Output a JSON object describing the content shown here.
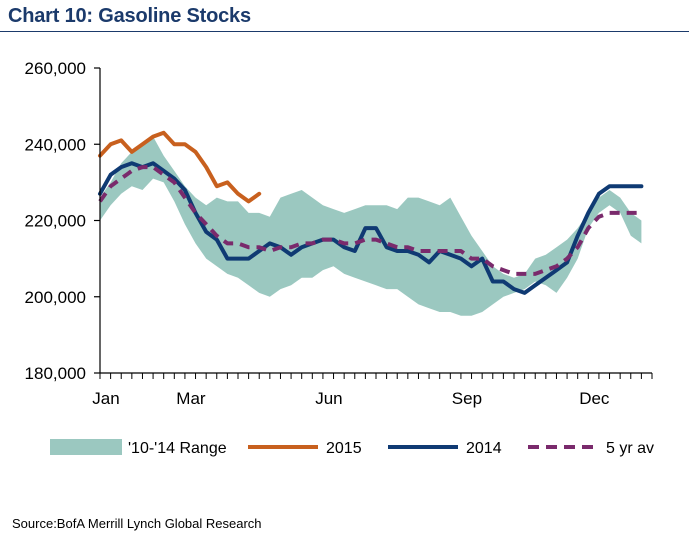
{
  "title": "Chart 10: Gasoline Stocks",
  "source": "Source:BofA Merrill Lynch Global Research",
  "colors": {
    "range": "#9bc8c0",
    "s2015": "#c8601e",
    "s2014": "#0f3a73",
    "avg": "#7a2a6c",
    "title": "#1b3a6b"
  },
  "chart_data": {
    "type": "line",
    "title": "Chart 10: Gasoline Stocks",
    "xlabel": "",
    "ylabel": "",
    "ylim": [
      180000,
      260000
    ],
    "yticks": [
      "260,000",
      "240,000",
      "220,000",
      "200,000",
      "180,000"
    ],
    "ytick_values": [
      260000,
      240000,
      220000,
      200000,
      180000
    ],
    "xticks": [
      "Jan",
      "Mar",
      "Jun",
      "Sep",
      "Dec"
    ],
    "xtick_weeks": [
      1,
      9,
      22,
      35,
      47
    ],
    "x_unit": "week of year",
    "xlim": [
      1,
      53
    ],
    "grid": false,
    "legend_position": "bottom",
    "legend": [
      "'10-'14 Range",
      "2015",
      "2014",
      "5 yr av"
    ],
    "series": [
      {
        "name": "'10-'14 Range",
        "kind": "band",
        "x": [
          1,
          2,
          3,
          4,
          5,
          6,
          7,
          8,
          9,
          10,
          11,
          12,
          13,
          14,
          15,
          16,
          17,
          18,
          19,
          20,
          21,
          22,
          23,
          24,
          25,
          26,
          27,
          28,
          29,
          30,
          31,
          32,
          33,
          34,
          35,
          36,
          37,
          38,
          39,
          40,
          41,
          42,
          43,
          44,
          45,
          46,
          47,
          48,
          49,
          50,
          51,
          52
        ],
        "low": [
          220000,
          224000,
          227000,
          229000,
          228000,
          231000,
          230000,
          225000,
          219000,
          214000,
          210000,
          208000,
          206000,
          205000,
          203000,
          201000,
          200000,
          202000,
          203000,
          205000,
          205000,
          207000,
          208000,
          206000,
          205000,
          204000,
          203000,
          202000,
          202000,
          200000,
          198000,
          197000,
          196000,
          196000,
          195000,
          195000,
          196000,
          198000,
          200000,
          201000,
          202000,
          204000,
          203000,
          201000,
          205000,
          210000,
          218000,
          222000,
          224000,
          222000,
          216000,
          214000
        ],
        "high": [
          226000,
          230000,
          235000,
          238000,
          240000,
          242000,
          237000,
          233000,
          229000,
          226000,
          224000,
          226000,
          225000,
          225000,
          222000,
          222000,
          221000,
          226000,
          227000,
          228000,
          226000,
          224000,
          223000,
          222000,
          223000,
          224000,
          224000,
          224000,
          223000,
          226000,
          226000,
          225000,
          224000,
          226000,
          221000,
          216000,
          212000,
          208000,
          206000,
          205000,
          206000,
          210000,
          211000,
          213000,
          215000,
          218000,
          222000,
          226000,
          228000,
          226000,
          222000,
          220000
        ]
      },
      {
        "name": "2015",
        "kind": "line",
        "x": [
          1,
          2,
          3,
          4,
          5,
          6,
          7,
          8,
          9,
          10,
          11,
          12,
          13,
          14,
          15,
          16
        ],
        "values": [
          237000,
          240000,
          241000,
          238000,
          240000,
          242000,
          243000,
          240000,
          240000,
          238000,
          234000,
          229000,
          230000,
          227000,
          225000,
          227000
        ]
      },
      {
        "name": "2014",
        "kind": "line",
        "x": [
          1,
          2,
          3,
          4,
          5,
          6,
          7,
          8,
          9,
          10,
          11,
          12,
          13,
          14,
          15,
          16,
          17,
          18,
          19,
          20,
          21,
          22,
          23,
          24,
          25,
          26,
          27,
          28,
          29,
          30,
          31,
          32,
          33,
          34,
          35,
          36,
          37,
          38,
          39,
          40,
          41,
          42,
          43,
          44,
          45,
          46,
          47,
          48,
          49,
          50,
          51,
          52
        ],
        "values": [
          227000,
          232000,
          234000,
          235000,
          234000,
          235000,
          233000,
          231000,
          228000,
          222000,
          217000,
          215000,
          210000,
          210000,
          210000,
          212000,
          214000,
          213000,
          211000,
          213000,
          214000,
          215000,
          215000,
          213000,
          212000,
          218000,
          218000,
          213000,
          212000,
          212000,
          211000,
          209000,
          212000,
          211000,
          210000,
          208000,
          210000,
          204000,
          204000,
          202000,
          201000,
          203000,
          205000,
          207000,
          209000,
          216000,
          222000,
          227000,
          229000,
          229000,
          229000,
          229000
        ]
      },
      {
        "name": "5 yr av",
        "kind": "dashed",
        "x": [
          1,
          2,
          3,
          4,
          5,
          6,
          7,
          8,
          9,
          10,
          11,
          12,
          13,
          14,
          15,
          16,
          17,
          18,
          19,
          20,
          21,
          22,
          23,
          24,
          25,
          26,
          27,
          28,
          29,
          30,
          31,
          32,
          33,
          34,
          35,
          36,
          37,
          38,
          39,
          40,
          41,
          42,
          43,
          44,
          45,
          46,
          47,
          48,
          49,
          50,
          51,
          52
        ],
        "values": [
          225000,
          229000,
          231000,
          233000,
          234000,
          234000,
          232000,
          230000,
          226000,
          222000,
          219000,
          216000,
          214000,
          214000,
          213000,
          213000,
          212000,
          213000,
          213000,
          214000,
          214000,
          215000,
          215000,
          214000,
          214000,
          215000,
          215000,
          214000,
          213000,
          213000,
          212000,
          212000,
          212000,
          212000,
          212000,
          210000,
          210000,
          208000,
          207000,
          206000,
          206000,
          206000,
          207000,
          208000,
          210000,
          213000,
          218000,
          221000,
          222000,
          222000,
          222000,
          222000
        ]
      }
    ]
  }
}
